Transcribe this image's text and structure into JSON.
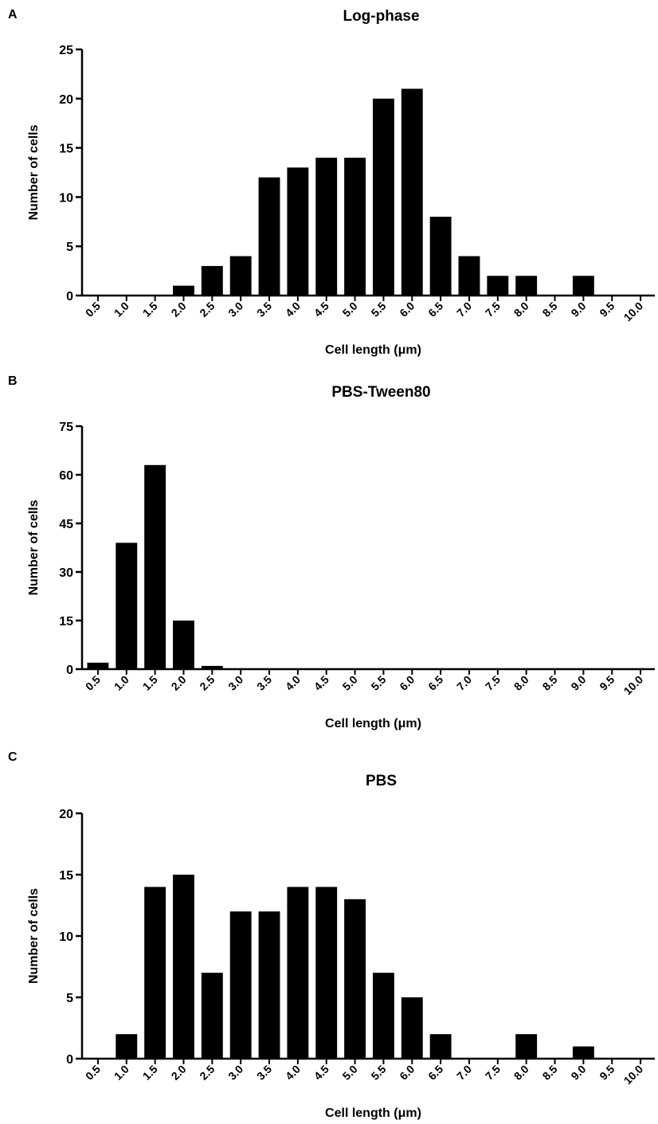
{
  "chart_data": [
    {
      "panel": "A",
      "type": "bar",
      "title": "Log-phase",
      "xlabel": "Cell length (μm)",
      "ylabel": "Number of cells",
      "categories": [
        "0.5",
        "1.0",
        "1.5",
        "2.0",
        "2.5",
        "3.0",
        "3.5",
        "4.0",
        "4.5",
        "5.0",
        "5.5",
        "6.0",
        "6.5",
        "7.0",
        "7.5",
        "8.0",
        "8.5",
        "9.0",
        "9.5",
        "10.0"
      ],
      "values": [
        0,
        0,
        0,
        1,
        3,
        4,
        12,
        13,
        14,
        14,
        20,
        21,
        8,
        4,
        2,
        2,
        0,
        2,
        0,
        0
      ],
      "yticks": [
        0,
        5,
        10,
        15,
        20,
        25
      ],
      "ylim": [
        0,
        25
      ],
      "color": "#000000",
      "grid": false
    },
    {
      "panel": "B",
      "type": "bar",
      "title": "PBS-Tween80",
      "xlabel": "Cell length (μm)",
      "ylabel": "Number of cells",
      "categories": [
        "0.5",
        "1.0",
        "1.5",
        "2.0",
        "2.5",
        "3.0",
        "3.5",
        "4.0",
        "4.5",
        "5.0",
        "5.5",
        "6.0",
        "6.5",
        "7.0",
        "7.5",
        "8.0",
        "8.5",
        "9.0",
        "9.5",
        "10.0"
      ],
      "values": [
        2,
        39,
        63,
        15,
        1,
        0,
        0,
        0,
        0,
        0,
        0,
        0,
        0,
        0,
        0,
        0,
        0,
        0,
        0,
        0
      ],
      "yticks": [
        0,
        15,
        30,
        45,
        60,
        75
      ],
      "ylim": [
        0,
        75
      ],
      "color": "#000000",
      "grid": false
    },
    {
      "panel": "C",
      "type": "bar",
      "title": "PBS",
      "xlabel": "Cell length (μm)",
      "ylabel": "Number of cells",
      "categories": [
        "0.5",
        "1.0",
        "1.5",
        "2.0",
        "2.5",
        "3.0",
        "3.5",
        "4.0",
        "4.5",
        "5.0",
        "5.5",
        "6.0",
        "6.5",
        "7.0",
        "7.5",
        "8.0",
        "8.5",
        "9.0",
        "9.5",
        "10.0"
      ],
      "values": [
        0,
        2,
        14,
        15,
        7,
        12,
        12,
        14,
        14,
        13,
        7,
        5,
        2,
        0,
        0,
        2,
        0,
        1,
        0,
        0
      ],
      "yticks": [
        0,
        5,
        10,
        15,
        20
      ],
      "ylim": [
        0,
        20
      ],
      "color": "#000000",
      "grid": false
    }
  ]
}
